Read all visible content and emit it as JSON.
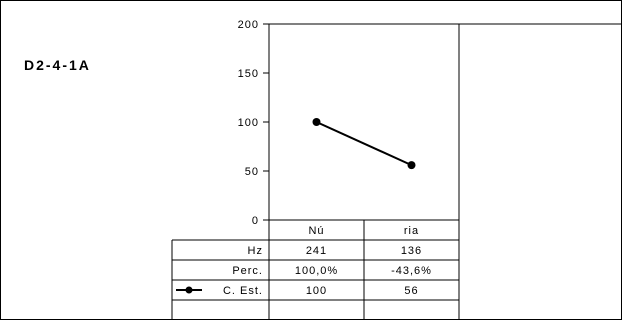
{
  "panel": {
    "title": "D2-4-1A"
  },
  "chart_data": {
    "type": "line",
    "categories": [
      "Nú",
      "ria"
    ],
    "series": [
      {
        "name": "C. Est.",
        "values": [
          100,
          56
        ],
        "color": "#000000"
      }
    ],
    "ylim": [
      0,
      200
    ],
    "yticks": [
      0,
      50,
      100,
      150,
      200
    ],
    "grid": false,
    "legend": "bottom-left",
    "table": {
      "rows": [
        {
          "label": "Hz",
          "values": [
            "241",
            "136"
          ]
        },
        {
          "label": "Perc.",
          "values": [
            "100,0%",
            "-43,6%"
          ]
        },
        {
          "label": "C. Est.",
          "values": [
            "100",
            "56"
          ],
          "legend_marker": true
        }
      ]
    }
  }
}
